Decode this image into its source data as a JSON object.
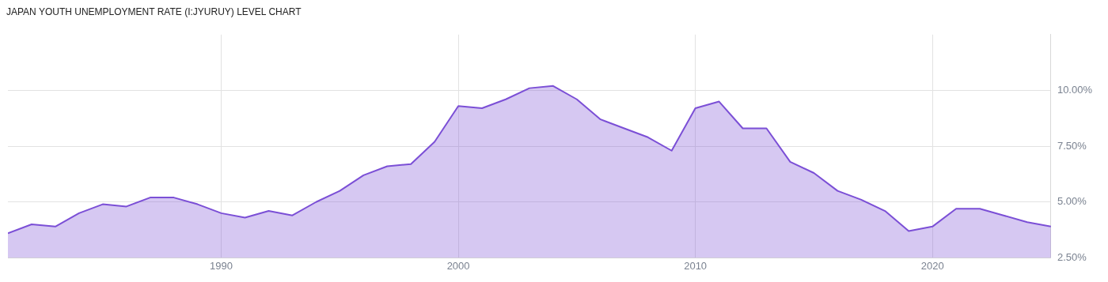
{
  "chart_data": {
    "type": "area",
    "title": "JAPAN YOUTH UNEMPLOYMENT RATE (I:JYURUY) LEVEL CHART",
    "x": [
      1981,
      1982,
      1983,
      1984,
      1985,
      1986,
      1987,
      1988,
      1989,
      1990,
      1991,
      1992,
      1993,
      1994,
      1995,
      1996,
      1997,
      1998,
      1999,
      2000,
      2001,
      2002,
      2003,
      2004,
      2005,
      2006,
      2007,
      2008,
      2009,
      2010,
      2011,
      2012,
      2013,
      2014,
      2015,
      2016,
      2017,
      2018,
      2019,
      2020,
      2021,
      2022,
      2023,
      2024,
      2025
    ],
    "series": [
      {
        "color": "#7b4fd6",
        "values": [
          3.6,
          4.0,
          3.9,
          4.5,
          4.9,
          4.8,
          5.2,
          5.2,
          4.9,
          4.5,
          4.3,
          4.6,
          4.4,
          5.0,
          5.5,
          6.2,
          6.6,
          6.7,
          7.7,
          9.3,
          9.2,
          9.6,
          10.1,
          10.2,
          9.6,
          8.7,
          8.3,
          7.9,
          7.3,
          9.2,
          9.5,
          8.3,
          8.3,
          6.8,
          6.3,
          5.5,
          5.1,
          4.6,
          3.7,
          3.9,
          4.7,
          4.7,
          4.4,
          4.1,
          3.9
        ]
      }
    ],
    "xlim": [
      1981,
      2025
    ],
    "xticks": [
      1990,
      2000,
      2010,
      2020
    ],
    "ylim": [
      2.5,
      12.5
    ],
    "yticks": [
      {
        "value": 2.5,
        "label": "2.50%"
      },
      {
        "value": 5,
        "label": "5.00%"
      },
      {
        "value": 7.5,
        "label": "7.50%"
      },
      {
        "value": 10,
        "label": "10.00%"
      }
    ],
    "grid": true,
    "legend": false,
    "marker": "none",
    "line_style": "solid"
  }
}
